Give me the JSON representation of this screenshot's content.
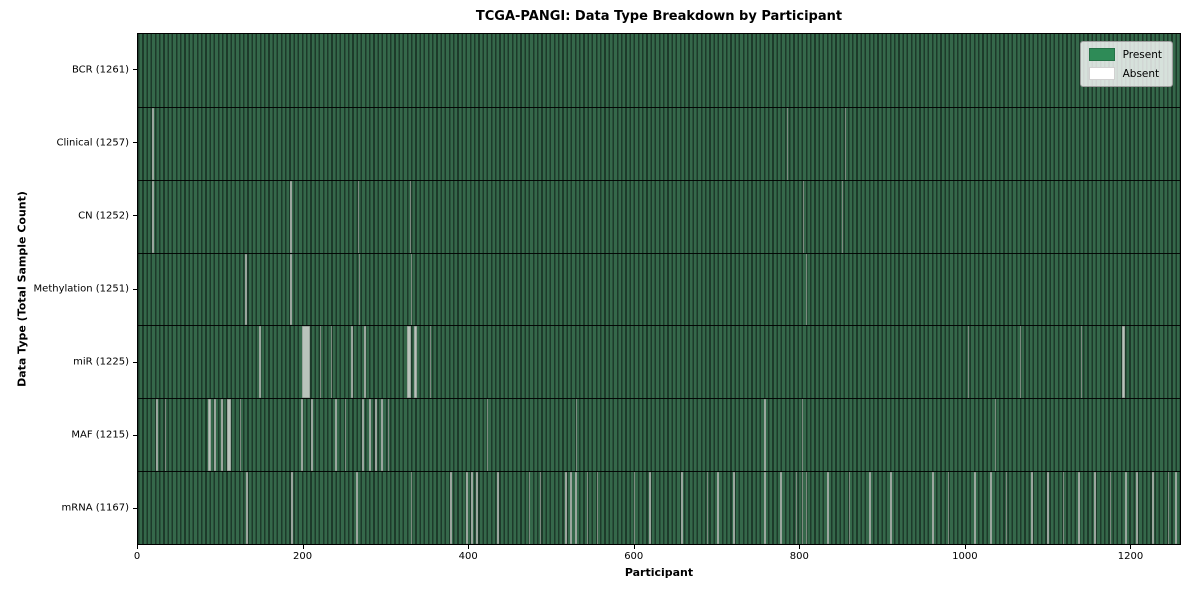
{
  "title": "TCGA-PANGI: Data Type Breakdown by Participant",
  "x_axis": {
    "label": "Participant",
    "ticks": [
      0,
      200,
      400,
      600,
      800,
      1000,
      1200
    ]
  },
  "y_axis": {
    "label": "Data Type (Total Sample Count)"
  },
  "legend": [
    {
      "label": "Present",
      "color": "#2e8b57"
    },
    {
      "label": "Absent",
      "color": "#ffffff"
    }
  ],
  "colors": {
    "present": "#2e8b57",
    "absent": "#ffffff",
    "bar_edge": "#1d3a2a",
    "bar_fill": "#35684a",
    "absent_stripe": "#b9c3bb",
    "spine": "#000000",
    "legend_bg": "rgba(255,255,255,0.8)"
  },
  "chart_data": {
    "type": "heatmap",
    "title": "TCGA-PANGI: Data Type Breakdown by Participant",
    "xlabel": "Participant",
    "ylabel": "Data Type (Total Sample Count)",
    "x_range": [
      0,
      1261
    ],
    "total_participants": 1261,
    "grid": false,
    "legend_position": "upper right",
    "legend_entries": [
      "Present",
      "Absent"
    ],
    "rows": [
      {
        "label": "BCR (1261)",
        "data_type": "BCR",
        "present_count": 1261,
        "absent_count": 0,
        "absent_participants": []
      },
      {
        "label": "Clinical (1257)",
        "data_type": "Clinical",
        "present_count": 1257,
        "absent_count": 4,
        "absent_participants": [
          17,
          18,
          786,
          856
        ]
      },
      {
        "label": "CN (1252)",
        "data_type": "CN",
        "present_count": 1252,
        "absent_count": 9,
        "absent_participants": [
          17,
          18,
          184,
          185,
          266,
          267,
          329,
          805,
          852
        ]
      },
      {
        "label": "Methylation (1251)",
        "data_type": "Methylation",
        "present_count": 1251,
        "absent_count": 10,
        "absent_participants": [
          130,
          131,
          184,
          185,
          267,
          268,
          330,
          331,
          808,
          809
        ]
      },
      {
        "label": "miR (1225)",
        "data_type": "miR",
        "present_count": 1225,
        "absent_count": 36,
        "absent_participants": [
          147,
          148,
          198,
          199,
          200,
          201,
          202,
          203,
          204,
          205,
          206,
          207,
          220,
          221,
          233,
          258,
          259,
          274,
          275,
          325,
          326,
          327,
          328,
          329,
          334,
          335,
          336,
          337,
          353,
          1004,
          1067,
          1068,
          1141,
          1191,
          1192,
          1193
        ]
      },
      {
        "label": "MAF (1215)",
        "data_type": "MAF",
        "present_count": 1215,
        "absent_count": 46,
        "absent_participants": [
          22,
          23,
          33,
          85,
          86,
          87,
          92,
          93,
          94,
          100,
          101,
          102,
          108,
          109,
          110,
          111,
          124,
          197,
          198,
          199,
          209,
          210,
          211,
          239,
          240,
          250,
          251,
          271,
          272,
          279,
          280,
          281,
          287,
          288,
          294,
          295,
          296,
          302,
          422,
          423,
          530,
          758,
          759,
          803,
          804,
          1037
        ]
      },
      {
        "label": "mRNA (1167)",
        "data_type": "mRNA",
        "present_count": 1167,
        "absent_count": 94,
        "absent_participants": [
          131,
          132,
          185,
          186,
          264,
          265,
          330,
          331,
          378,
          379,
          397,
          398,
          403,
          404,
          409,
          410,
          435,
          436,
          473,
          474,
          486,
          487,
          517,
          518,
          523,
          524,
          529,
          530,
          543,
          544,
          555,
          556,
          600,
          601,
          619,
          620,
          657,
          658,
          688,
          689,
          701,
          702,
          720,
          721,
          758,
          759,
          777,
          778,
          796,
          797,
          803,
          804,
          808,
          809,
          834,
          835,
          860,
          861,
          885,
          886,
          910,
          911,
          961,
          962,
          980,
          981,
          1012,
          1013,
          1031,
          1032,
          1050,
          1051,
          1081,
          1082,
          1100,
          1101,
          1119,
          1120,
          1138,
          1139,
          1157,
          1158,
          1176,
          1177,
          1195,
          1196,
          1208,
          1209,
          1227,
          1228,
          1246,
          1247,
          1255,
          1256
        ]
      }
    ]
  }
}
